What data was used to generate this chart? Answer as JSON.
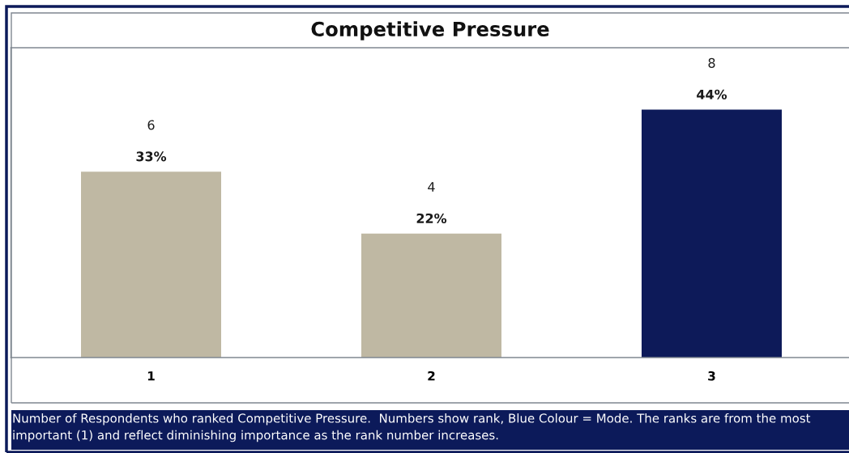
{
  "chart_data": {
    "type": "bar",
    "title": "Competitive Pressure",
    "categories": [
      "1",
      "2",
      "3"
    ],
    "values": [
      33,
      22,
      44
    ],
    "colors": [
      "#bfb8a3",
      "#bfb8a3",
      "#0d1a59"
    ],
    "value_labels": [
      "33%",
      "22%",
      "44%"
    ],
    "tick_labels": "x",
    "annotations": [
      "6",
      "4",
      "8",
      "Number of Respondents who ranked Competitive Pressure.  Numbers show rank, Blue Colour = Mode. The ranks are from the most important (1) and reflect diminishing importance as the rank number increases."
    ]
  }
}
